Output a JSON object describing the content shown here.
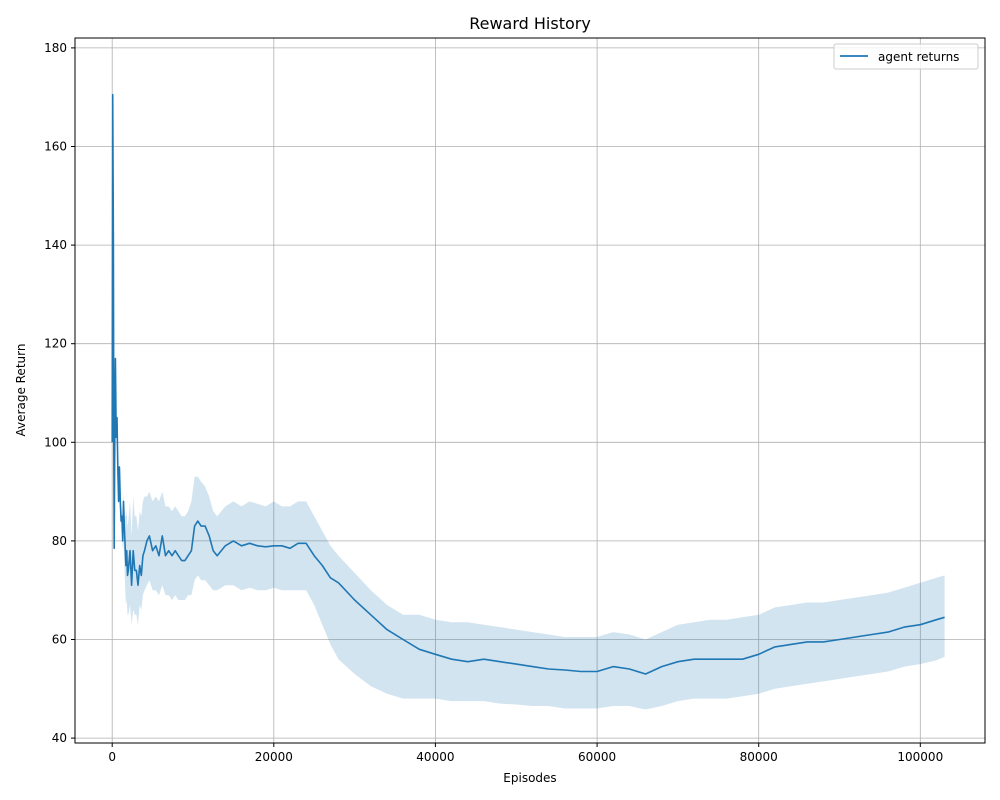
{
  "chart_data": {
    "type": "line",
    "title": "Reward History",
    "xlabel": "Episodes",
    "ylabel": "Average Return",
    "xlim": [
      -4600,
      108000
    ],
    "ylim": [
      39,
      182
    ],
    "xticks": [
      0,
      20000,
      40000,
      60000,
      80000,
      100000
    ],
    "yticks": [
      40,
      60,
      80,
      100,
      120,
      140,
      160,
      180
    ],
    "grid": true,
    "legend_position": "top-right",
    "colors": {
      "line": "#1f77b4",
      "band": "#1f77b4",
      "grid": "#b0b0b0"
    },
    "series": [
      {
        "name": "agent returns",
        "x": [
          0,
          60,
          150,
          200,
          250,
          300,
          400,
          500,
          600,
          700,
          800,
          900,
          1000,
          1100,
          1200,
          1300,
          1400,
          1500,
          1600,
          1700,
          1800,
          1900,
          2000,
          2200,
          2400,
          2600,
          2800,
          3000,
          3200,
          3400,
          3600,
          3800,
          4000,
          4300,
          4600,
          5000,
          5400,
          5800,
          6200,
          6600,
          7000,
          7400,
          7800,
          8200,
          8600,
          9000,
          9400,
          9800,
          10200,
          10600,
          11000,
          11500,
          12000,
          12500,
          13000,
          14000,
          15000,
          16000,
          17000,
          18000,
          19000,
          20000,
          21000,
          22000,
          23000,
          24000,
          25000,
          26000,
          27000,
          28000,
          30000,
          32000,
          34000,
          36000,
          38000,
          40000,
          42000,
          44000,
          46000,
          48000,
          50000,
          52000,
          54000,
          56000,
          58000,
          60000,
          62000,
          64000,
          66000,
          68000,
          70000,
          72000,
          74000,
          76000,
          78000,
          80000,
          82000,
          84000,
          86000,
          88000,
          90000,
          92000,
          94000,
          96000,
          98000,
          100000,
          102000,
          103000
        ],
        "mean": [
          100,
          170.5,
          140,
          100,
          78.5,
          95,
          117,
          101,
          105,
          95,
          88,
          95,
          88,
          84,
          85,
          80,
          88,
          83,
          79,
          75,
          78,
          73,
          74,
          78,
          71,
          78,
          74,
          74,
          71,
          75,
          73,
          77,
          78,
          80,
          81,
          78,
          79,
          77,
          81,
          77,
          78,
          77,
          78,
          77,
          76,
          76,
          77,
          78,
          83,
          84,
          83,
          83,
          81,
          78,
          77,
          79,
          80,
          79,
          79.5,
          79,
          78.8,
          79,
          79,
          78.5,
          79.5,
          79.5,
          77,
          75,
          72.5,
          71.5,
          68,
          65,
          62,
          60,
          58,
          57,
          56,
          55.5,
          56,
          55.5,
          55,
          54.5,
          54,
          53.8,
          53.5,
          53.5,
          54.5,
          54,
          53,
          54.5,
          55.5,
          56,
          56,
          56,
          56,
          57,
          58.5,
          59,
          59.5,
          59.5,
          60,
          60.5,
          61,
          61.5,
          62.5,
          63,
          64,
          64.5
        ],
        "lower": [
          100,
          170.5,
          140,
          100,
          78.5,
          95,
          117,
          101,
          105,
          95,
          88,
          95,
          88,
          84,
          83,
          78,
          80,
          75,
          71,
          67,
          68,
          65,
          65,
          67,
          63,
          66,
          65,
          65,
          63,
          67,
          66,
          69,
          70,
          71,
          72,
          70,
          70,
          69,
          71,
          69,
          69,
          68,
          69,
          68,
          68,
          68,
          69,
          69,
          72,
          73,
          72,
          72,
          71,
          70,
          70,
          71,
          71,
          70,
          70.5,
          70,
          70,
          70.5,
          70,
          70,
          70,
          70,
          67,
          63,
          59,
          56,
          53,
          50.5,
          49,
          48,
          48,
          48,
          47.5,
          47.5,
          47.5,
          47,
          46.8,
          46.5,
          46.5,
          46,
          46,
          46,
          46.5,
          46.5,
          45.8,
          46.5,
          47.5,
          48,
          48,
          48,
          48.5,
          49,
          50,
          50.5,
          51,
          51.5,
          52,
          52.5,
          53,
          53.5,
          54.5,
          55,
          55.8,
          56.5
        ],
        "upper": [
          100,
          170.5,
          140,
          100,
          78.5,
          95,
          117,
          101,
          105,
          95,
          88,
          95,
          88,
          84,
          87,
          82,
          90,
          87,
          85,
          85,
          86,
          83,
          84,
          88,
          81,
          89,
          85,
          85,
          82,
          86,
          85,
          88,
          89,
          89,
          90,
          88,
          89,
          88,
          90,
          87,
          87,
          86,
          87,
          86,
          85,
          85,
          86,
          88,
          93,
          93,
          92,
          91,
          89,
          86,
          85,
          87,
          88,
          87,
          88,
          87.5,
          87,
          88,
          87,
          87,
          88,
          88,
          85,
          82,
          79,
          77,
          73.5,
          70,
          67,
          65,
          65,
          64,
          63.5,
          63.5,
          63,
          62.5,
          62,
          61.5,
          61,
          60.5,
          60.5,
          60.5,
          61.5,
          61,
          60,
          61.5,
          63,
          63.5,
          64,
          64,
          64.5,
          65,
          66.5,
          67,
          67.5,
          67.5,
          68,
          68.5,
          69,
          69.5,
          70.5,
          71.5,
          72.5,
          73
        ]
      }
    ]
  }
}
